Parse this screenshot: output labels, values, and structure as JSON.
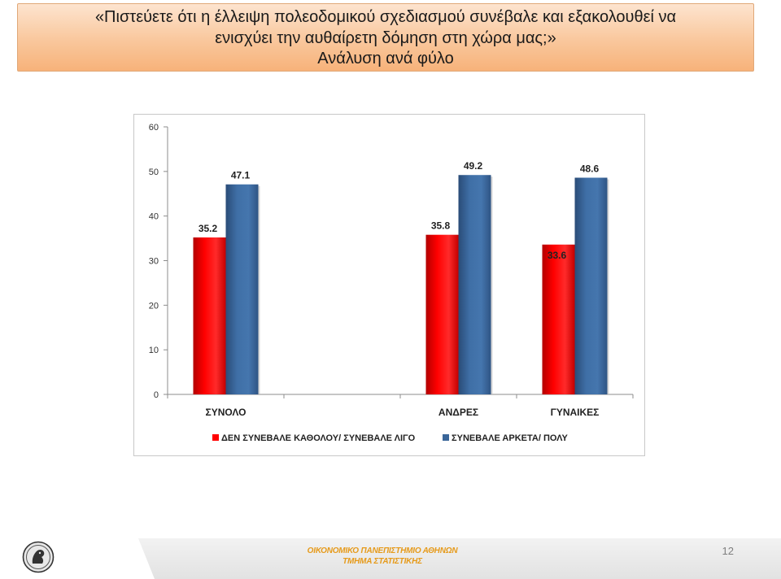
{
  "slide": {
    "title_lines": [
      "«Πιστεύετε ότι η έλλειψη πολεοδομικού σχεδιασμού συνέβαλε και εξακολουθεί να",
      "ενισχύει την αυθαίρετη δόμηση στη χώρα μας;»",
      "Ανάλυση ανά φύλο"
    ],
    "footer_lines": [
      "ΟΙΚΟΝΟΜΙΚΟ ΠΑΝΕΠΙΣΤΗΜΙΟ ΑΘΗΝΩΝ",
      "ΤΜΗΜΑ ΣΤΑΤΙΣΤΙΚΗΣ"
    ],
    "page_number": "12"
  },
  "colors": {
    "series_red": "#ff0000",
    "series_blue": "#3a6699",
    "footer_text": "#e69a1a"
  },
  "chart_data": {
    "type": "bar",
    "categories": [
      "ΣΥΝΟΛΟ",
      "",
      "ΑΝΔΡΕΣ",
      "ΓΥΝΑΙΚΕΣ"
    ],
    "series": [
      {
        "name": "ΔΕΝ ΣΥΝΕΒΑΛΕ ΚΑΘΟΛΟΥ/ ΣΥΝΕΒΑΛΕ ΛΙΓΟ",
        "values": [
          35.2,
          null,
          35.8,
          33.6
        ],
        "labels": [
          "35.2",
          "",
          "35.8",
          "33.6"
        ],
        "color": "#ff0000"
      },
      {
        "name": "ΣΥΝΕΒΑΛΕ ΑΡΚΕΤΑ/ ΠΟΛΥ",
        "values": [
          47.1,
          null,
          49.2,
          48.6
        ],
        "labels": [
          "47.1",
          "",
          "49.2",
          "48.6"
        ],
        "color": "#3a6699"
      }
    ],
    "yticks": [
      "0",
      "10",
      "20",
      "30",
      "40",
      "50",
      "60"
    ],
    "ylim": [
      0,
      60
    ],
    "grid": false,
    "legend_position": "bottom"
  }
}
